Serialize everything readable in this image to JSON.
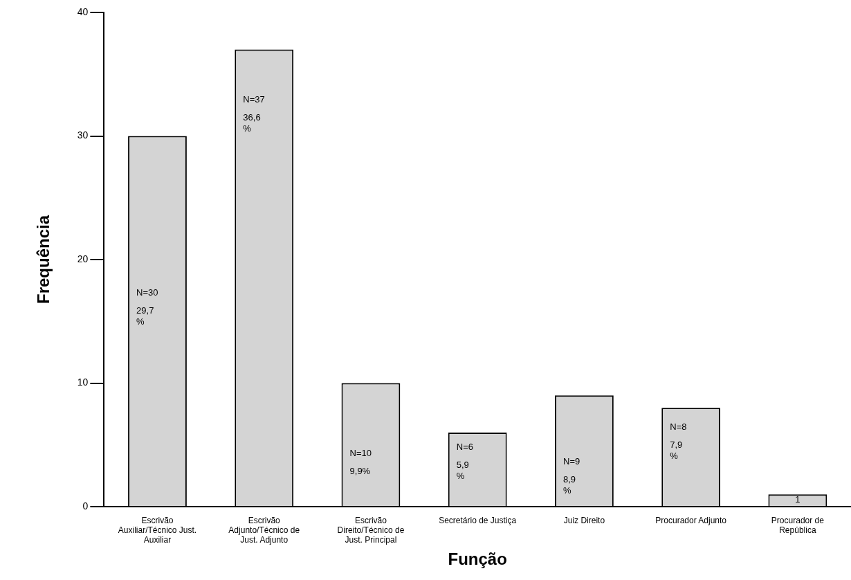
{
  "chart_data": {
    "type": "bar",
    "xlabel": "Função",
    "ylabel": "Frequência",
    "categories": [
      "Escrivão Auxiliar/Técnico Just. Auxiliar",
      "Escrivão Adjunto/Técnico de Just. Adjunto",
      "Escrivão Direito/Técnico de Just. Principal",
      "Secretário de Justiça",
      "Juiz Direito",
      "Procurador Adjunto",
      "Procurador de República"
    ],
    "values": [
      30,
      37,
      10,
      6,
      9,
      8,
      1
    ],
    "value_labels": [
      "N=30\n29,7\n%",
      "N=37\n36,6\n%",
      "N=10\n9,9%",
      "N=6\n5,9\n%",
      "N=9\n8,9\n%",
      "N=8\n7,9\n%",
      "1"
    ],
    "color": "#d4d4d4",
    "ylim": [
      0,
      40
    ],
    "yticks": [
      0,
      10,
      20,
      30,
      40
    ],
    "grid": false,
    "legend": false
  }
}
